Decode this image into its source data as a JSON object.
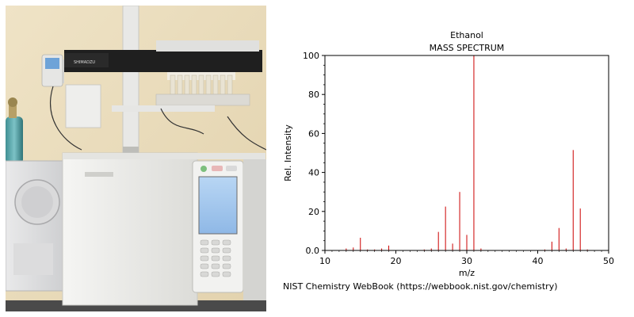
{
  "photo": {
    "instrument_brand": "SHIMADZU"
  },
  "credit": "NIST Chemistry WebBook (https://webbook.nist.gov/chemistry)",
  "chart_data": {
    "type": "bar",
    "title": "Ethanol",
    "subtitle": "MASS SPECTRUM",
    "xlabel": "m/z",
    "ylabel": "Rel. Intensity",
    "xlim": [
      10,
      50
    ],
    "ylim": [
      0,
      100
    ],
    "xticks": [
      "10",
      "20",
      "30",
      "40",
      "50"
    ],
    "yticks": [
      "0.0",
      "20",
      "40",
      "60",
      "80",
      "100"
    ],
    "grid": false,
    "peak_color": "#cc0000",
    "peaks": [
      {
        "mz": 13,
        "intensity": 1.0
      },
      {
        "mz": 14,
        "intensity": 1.5
      },
      {
        "mz": 15,
        "intensity": 6.5
      },
      {
        "mz": 16,
        "intensity": 0.5
      },
      {
        "mz": 17,
        "intensity": 0.5
      },
      {
        "mz": 18,
        "intensity": 1.0
      },
      {
        "mz": 19,
        "intensity": 2.5
      },
      {
        "mz": 24,
        "intensity": 0.5
      },
      {
        "mz": 25,
        "intensity": 1.0
      },
      {
        "mz": 26,
        "intensity": 9.5
      },
      {
        "mz": 27,
        "intensity": 22.5
      },
      {
        "mz": 28,
        "intensity": 3.5
      },
      {
        "mz": 29,
        "intensity": 30.0
      },
      {
        "mz": 30,
        "intensity": 8.0
      },
      {
        "mz": 31,
        "intensity": 100.0
      },
      {
        "mz": 32,
        "intensity": 1.0
      },
      {
        "mz": 41,
        "intensity": 0.5
      },
      {
        "mz": 42,
        "intensity": 4.5
      },
      {
        "mz": 43,
        "intensity": 11.5
      },
      {
        "mz": 44,
        "intensity": 1.0
      },
      {
        "mz": 45,
        "intensity": 51.5
      },
      {
        "mz": 46,
        "intensity": 21.5
      },
      {
        "mz": 47,
        "intensity": 0.5
      }
    ]
  }
}
